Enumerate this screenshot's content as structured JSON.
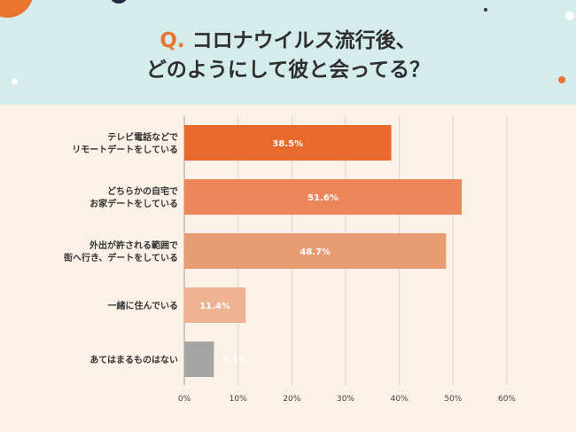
{
  "title": {
    "q_mark": "Q.",
    "line1": "コロナウイルス流行後、",
    "line2": "どのようにして彼と会ってる？"
  },
  "chart_data": {
    "type": "bar",
    "orientation": "horizontal",
    "categories": [
      [
        "テレビ電話などで",
        "リモートデートをしている"
      ],
      [
        "どちらかの自宅で",
        "お家デートをしている"
      ],
      [
        "外出が許される範囲で",
        "街へ行き、デートをしている"
      ],
      [
        "一緒に住んでいる"
      ],
      [
        "あてはまるものはない"
      ]
    ],
    "values": [
      38.5,
      51.6,
      48.7,
      11.4,
      5.5
    ],
    "value_labels": [
      "38.5%",
      "51.6%",
      "48.7%",
      "11.4%",
      "5.5%"
    ],
    "bar_colors": [
      "#e8692b",
      "#ec855a",
      "#e99c73",
      "#efb393",
      "#a4a4a4"
    ],
    "xlim": [
      0,
      60
    ],
    "xticks": [
      0,
      10,
      20,
      30,
      40,
      50,
      60
    ],
    "xtick_labels": [
      "0%",
      "10%",
      "20%",
      "30%",
      "40%",
      "50%",
      "60%"
    ],
    "grid": true
  },
  "colors": {
    "accent": "#e8742f",
    "header_bg": "#d5ecec",
    "body_bg": "#fbf1e7",
    "label_gray": "#a0a0a0"
  }
}
